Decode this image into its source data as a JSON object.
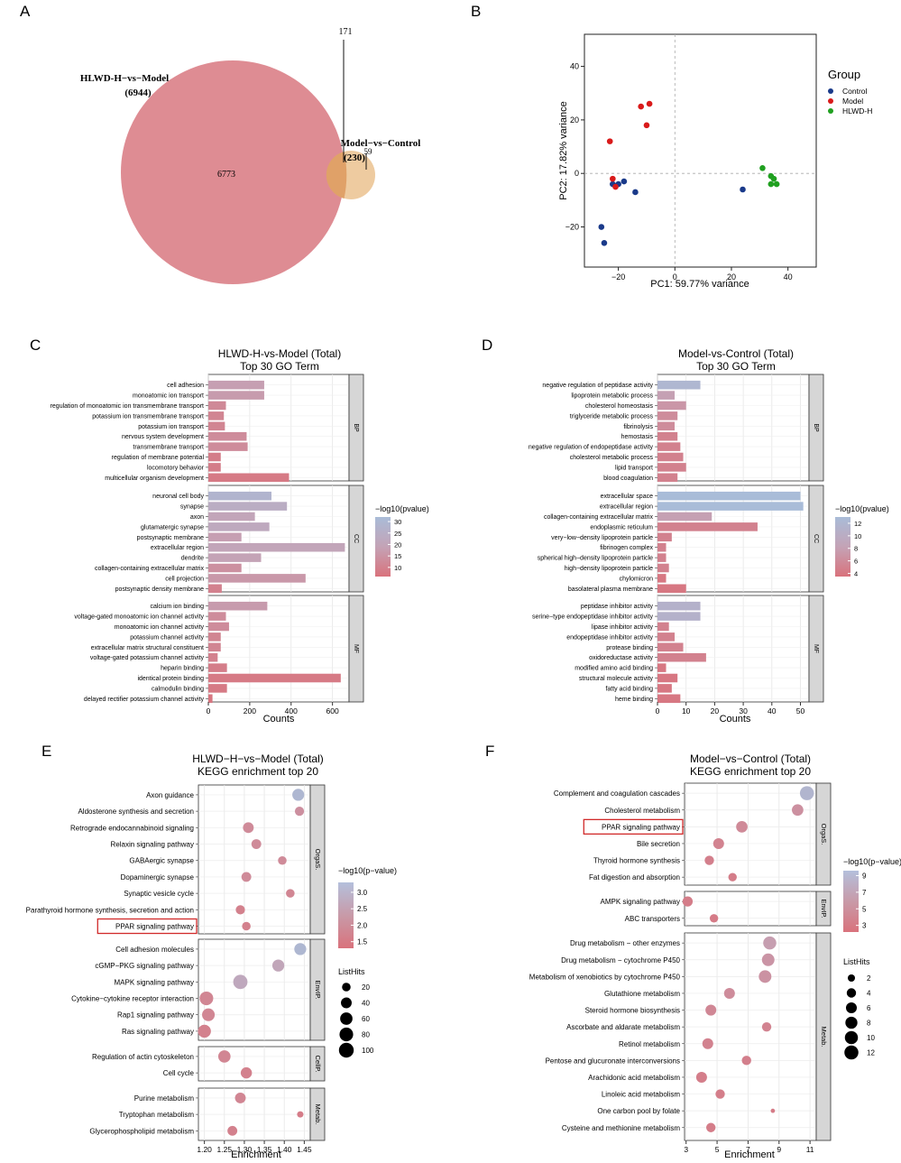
{
  "panels": {
    "A": "A",
    "B": "B",
    "C": "C",
    "D": "D",
    "E": "E",
    "F": "F"
  },
  "venn": {
    "set1_label": "HLWD-H−vs−Model",
    "set1_count": "(6944)",
    "set2_label": "Model−vs−Control",
    "set2_count": "(230)",
    "only1": "6773",
    "overlap": "171",
    "only2": "59",
    "colors": {
      "set1": "#de8c93",
      "set2": "#e8b980",
      "overlap": "#e0a168"
    }
  },
  "pca": {
    "xlabel": "PC1: 59.77% variance",
    "ylabel": "PC2: 17.82% variance",
    "legend_title": "Group",
    "groups": [
      {
        "name": "Control",
        "color": "#1a3a8a",
        "points": [
          [
            -26,
            -20
          ],
          [
            -25,
            -26
          ],
          [
            -20,
            -4
          ],
          [
            -18,
            -3
          ],
          [
            -14,
            -7
          ],
          [
            -22,
            -4
          ],
          [
            24,
            -6
          ]
        ]
      },
      {
        "name": "Model",
        "color": "#d91a1a",
        "points": [
          [
            -23,
            12
          ],
          [
            -12,
            25
          ],
          [
            -9,
            26
          ],
          [
            -10,
            18
          ],
          [
            -22,
            -2
          ],
          [
            -21,
            -5
          ]
        ]
      },
      {
        "name": "HLWD-H",
        "color": "#20a020",
        "points": [
          [
            31,
            2
          ],
          [
            34,
            -1
          ],
          [
            35,
            -2
          ],
          [
            34,
            -4
          ],
          [
            36,
            -4
          ]
        ]
      }
    ],
    "xlim": [
      -32,
      50
    ],
    "ylim": [
      -35,
      52
    ],
    "xticks": [
      "−20",
      "0",
      "20",
      "40"
    ],
    "xtickvals": [
      -20,
      0,
      20,
      40
    ],
    "yticks": [
      "−20",
      "0",
      "20",
      "40"
    ],
    "ytickvals": [
      -20,
      0,
      20,
      40
    ]
  },
  "chart_data": [
    {
      "type": "bar",
      "title": "HLWD-H-vs-Model (Total)",
      "subtitle": "Top 30 GO Term",
      "xlabel": "Counts",
      "xlim": [
        0,
        680
      ],
      "xticks": [
        "0",
        "200",
        "400",
        "600"
      ],
      "xtickvals": [
        0,
        200,
        400,
        600
      ],
      "legend_title": "−log10(pvalue)",
      "legend_ticks": [
        "30",
        "25",
        "20",
        "15",
        "10"
      ],
      "legend_tickvals": [
        30,
        25,
        20,
        15,
        10
      ],
      "color_range": [
        6,
        32
      ],
      "facets": [
        {
          "name": "BP",
          "terms": [
            "cell adhesion",
            "monoatomic ion transport",
            "regulation of monoatomic ion transmembrane transport",
            "potassium ion transmembrane transport",
            "potassium ion transport",
            "nervous system development",
            "transmembrane transport",
            "regulation of membrane potential",
            "locomotory behavior",
            "multicellular organism development"
          ],
          "values": [
            270,
            270,
            85,
            75,
            80,
            185,
            190,
            60,
            60,
            390
          ],
          "pvals": [
            18,
            17,
            12,
            11,
            11,
            13,
            13,
            9,
            9,
            8
          ]
        },
        {
          "name": "CC",
          "terms": [
            "neuronal cell body",
            "synapse",
            "axon",
            "glutamatergic synapse",
            "postsynaptic membrane",
            "extracellular region",
            "dendrite",
            "collagen-containing extracellular matrix",
            "cell projection",
            "postsynaptic density membrane"
          ],
          "values": [
            305,
            380,
            225,
            295,
            160,
            660,
            255,
            160,
            470,
            65
          ],
          "pvals": [
            28,
            24,
            20,
            22,
            18,
            20,
            19,
            14,
            16,
            10
          ]
        },
        {
          "name": "MF",
          "terms": [
            "calcium ion binding",
            "voltage-gated monoatomic ion channel activity",
            "monoatomic ion channel activity",
            "potassium channel activity",
            "extracellular matrix structural constituent",
            "voltage-gated potassium channel activity",
            "heparin binding",
            "identical protein binding",
            "calmodulin binding",
            "delayed rectifier potassium channel activity"
          ],
          "values": [
            285,
            85,
            100,
            60,
            60,
            45,
            90,
            640,
            90,
            20
          ],
          "pvals": [
            17,
            13,
            13,
            11,
            11,
            10,
            9,
            8,
            8,
            7
          ]
        }
      ]
    },
    {
      "type": "bar",
      "title": "Model-vs-Control (Total)",
      "subtitle": "Top 30 GO Term",
      "xlabel": "Counts",
      "xlim": [
        0,
        53
      ],
      "xticks": [
        "0",
        "10",
        "20",
        "30",
        "40",
        "50"
      ],
      "xtickvals": [
        0,
        10,
        20,
        30,
        40,
        50
      ],
      "legend_title": "−log10(pvalue)",
      "legend_ticks": [
        "12",
        "10",
        "8",
        "6",
        "4"
      ],
      "legend_tickvals": [
        12,
        10,
        8,
        6,
        4
      ],
      "color_range": [
        3.5,
        13
      ],
      "facets": [
        {
          "name": "BP",
          "terms": [
            "negative regulation of peptidase activity",
            "lipoprotein metabolic process",
            "cholesterol homeostasis",
            "triglyceride metabolic process",
            "fibrinolysis",
            "hemostasis",
            "negative regulation of endopeptidase activity",
            "cholesterol metabolic process",
            "lipid transport",
            "blood coagulation"
          ],
          "values": [
            15,
            6,
            10,
            7,
            6,
            7,
            8,
            9,
            10,
            7
          ],
          "pvals": [
            12,
            8,
            7,
            6,
            6,
            5,
            5,
            5,
            5,
            5
          ]
        },
        {
          "name": "CC",
          "terms": [
            "extracellular space",
            "extracellular region",
            "collagen-containing extracellular matrix",
            "endoplasmic reticulum",
            "very−low−density lipoprotein particle",
            "fibrinogen complex",
            "spherical high−density lipoprotein particle",
            "high−density lipoprotein particle",
            "chylomicron",
            "basolateral plasma membrane"
          ],
          "values": [
            50,
            51,
            19,
            35,
            5,
            3,
            3,
            4,
            3,
            10
          ],
          "pvals": [
            13,
            13,
            8,
            5,
            5,
            5,
            5,
            5,
            4,
            4
          ]
        },
        {
          "name": "MF",
          "terms": [
            "peptidase inhibitor activity",
            "serine−type endopeptidase inhibitor activity",
            "lipase inhibitor activity",
            "endopeptidase inhibitor activity",
            "protease binding",
            "oxidoreductase activity",
            "modified amino acid binding",
            "structural molecule activity",
            "fatty acid binding",
            "heme binding"
          ],
          "values": [
            15,
            15,
            4,
            6,
            9,
            17,
            3,
            7,
            5,
            8
          ],
          "pvals": [
            11,
            11,
            5,
            5,
            5,
            5,
            4,
            4,
            4,
            4
          ]
        }
      ]
    },
    {
      "type": "scatter",
      "title": "HLWD−H−vs−Model (Total)",
      "subtitle": "KEGG enrichment top 20",
      "xlabel": "Enrichment",
      "xlim": [
        1.185,
        1.465
      ],
      "xticks": [
        "1.20",
        "1.25",
        "1.30",
        "1.35",
        "1.40",
        "1.45"
      ],
      "xtickvals": [
        1.2,
        1.25,
        1.3,
        1.35,
        1.4,
        1.45
      ],
      "legend_title": "−log10(p−value)",
      "legend_ticks": [
        "3.0",
        "2.5",
        "2.0",
        "1.5"
      ],
      "legend_tickvals": [
        3.0,
        2.5,
        2.0,
        1.5
      ],
      "color_range": [
        1.3,
        3.3
      ],
      "size_title": "ListHits",
      "size_ticks": [
        "20",
        "40",
        "60",
        "80",
        "100"
      ],
      "size_tickvals": [
        20,
        40,
        60,
        80,
        100
      ],
      "size_range": [
        5,
        110
      ],
      "highlight": "PPAR signaling pathway",
      "facets": [
        {
          "name": "OrgaS.",
          "terms": [
            "Axon guidance",
            "Aldosterone synthesis and secretion",
            "Retrograde endocannabinoid signaling",
            "Relaxin signaling pathway",
            "GABAergic synapse",
            "Dopaminergic synapse",
            "Synaptic vesicle cycle",
            "Parathyroid hormone synthesis, secretion and action",
            "PPAR signaling pathway"
          ],
          "x": [
            1.435,
            1.438,
            1.31,
            1.33,
            1.395,
            1.305,
            1.415,
            1.29,
            1.305
          ],
          "hits": [
            55,
            25,
            40,
            30,
            20,
            30,
            20,
            25,
            20
          ],
          "p": [
            3.1,
            1.9,
            1.8,
            1.8,
            1.8,
            1.8,
            1.7,
            1.6,
            1.6
          ]
        },
        {
          "name": "EnvIP.",
          "terms": [
            "Cell adhesion molecules",
            "cGMP−PKG signaling pathway",
            "MAPK signaling pathway",
            "Cytokine−cytokine receptor interaction",
            "Rap1 signaling pathway",
            "Ras signaling pathway"
          ],
          "x": [
            1.44,
            1.385,
            1.29,
            1.205,
            1.21,
            1.2
          ],
          "hits": [
            55,
            55,
            90,
            80,
            65,
            70
          ],
          "p": [
            3.1,
            2.4,
            2.5,
            1.7,
            1.7,
            1.6
          ]
        },
        {
          "name": "CellP.",
          "terms": [
            "Regulation of actin cytoskeleton",
            "Cell cycle"
          ],
          "x": [
            1.25,
            1.305
          ],
          "hits": [
            60,
            45
          ],
          "p": [
            1.7,
            1.6
          ]
        },
        {
          "name": "Metab.",
          "terms": [
            "Purine metabolism",
            "Tryptophan metabolism",
            "Glycerophospholipid metabolism"
          ],
          "x": [
            1.29,
            1.44,
            1.27
          ],
          "hits": [
            40,
            8,
            30
          ],
          "p": [
            1.7,
            1.5,
            1.6
          ]
        }
      ]
    },
    {
      "type": "scatter",
      "title": "Model−vs−Control (Total)",
      "subtitle": "KEGG enrichment top 20",
      "xlabel": "Enrichment",
      "xlim": [
        2.9,
        11.4
      ],
      "xticks": [
        "3",
        "5",
        "7",
        "9",
        "11"
      ],
      "xtickvals": [
        3,
        5,
        7,
        9,
        11
      ],
      "legend_title": "−log10(p−value)",
      "legend_ticks": [
        "9",
        "7",
        "5",
        "3"
      ],
      "legend_tickvals": [
        9,
        7,
        5,
        3
      ],
      "color_range": [
        2.2,
        9.6
      ],
      "size_title": "ListHits",
      "size_ticks": [
        "2",
        "4",
        "6",
        "8",
        "10",
        "12"
      ],
      "size_tickvals": [
        2,
        4,
        6,
        8,
        10,
        12
      ],
      "size_range": [
        1,
        13
      ],
      "highlight": "PPAR signaling pathway",
      "facets": [
        {
          "name": "OrgaS.",
          "terms": [
            "Complement and coagulation cascades",
            "Cholesterol metabolism",
            "PPAR signaling pathway",
            "Bile secretion",
            "Thyroid hormone synthesis",
            "Fat digestion and absorption"
          ],
          "x": [
            10.8,
            10.2,
            6.6,
            5.1,
            4.5,
            6.0
          ],
          "hits": [
            12,
            7,
            7,
            6,
            4,
            3
          ],
          "p": [
            8.5,
            4.5,
            4.0,
            3.5,
            3.2,
            3.0
          ]
        },
        {
          "name": "EnvIP.",
          "terms": [
            "AMPK signaling pathway",
            "ABC transporters"
          ],
          "x": [
            3.1,
            4.8
          ],
          "hits": [
            5,
            3
          ],
          "p": [
            3.0,
            2.9
          ]
        },
        {
          "name": "Metab.",
          "terms": [
            "Drug metabolism − other enzymes",
            "Drug metabolism − cytochrome P450",
            "Metabolism of xenobiotics by cytochrome P450",
            "Glutathione metabolism",
            "Steroid hormone biosynthesis",
            "Ascorbate and aldarate metabolism",
            "Retinol metabolism",
            "Pentose and glucuronate interconversions",
            "Arachidonic acid metabolism",
            "Linoleic acid metabolism",
            "One carbon pool by folate",
            "Cysteine and methionine metabolism"
          ],
          "x": [
            8.4,
            8.3,
            8.1,
            5.8,
            4.6,
            8.2,
            4.4,
            6.9,
            4.0,
            5.2,
            8.6,
            4.6
          ],
          "hits": [
            10,
            9,
            9,
            6,
            6,
            4,
            6,
            4,
            6,
            4,
            1,
            4
          ],
          "p": [
            5.5,
            4.8,
            4.6,
            4.2,
            3.8,
            3.5,
            3.4,
            3.2,
            3.1,
            3.1,
            2.9,
            3.0
          ]
        }
      ]
    }
  ]
}
